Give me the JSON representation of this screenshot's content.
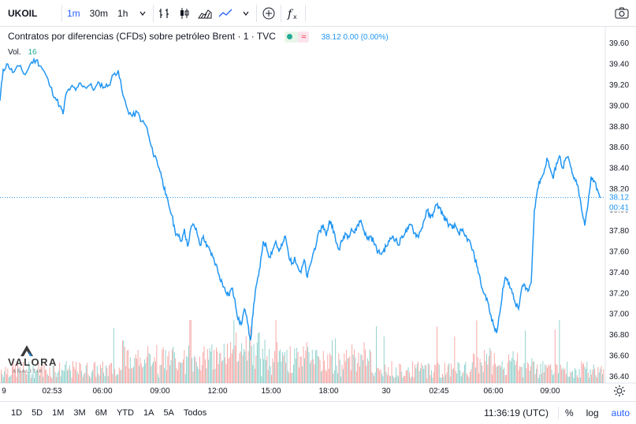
{
  "toolbar": {
    "symbol": "UKOIL",
    "intervals": [
      "1m",
      "30m",
      "1h"
    ],
    "active_interval": "1m"
  },
  "legend": {
    "title": "Contratos por diferencias (CFDs) sobre petróleo Brent · 1 · TVC",
    "badge": "≈",
    "quote": "38.12  0.00 (0.00%)",
    "volume_label": "Vol.",
    "volume_value": "16"
  },
  "price_axis": {
    "ticks": [
      "39.60",
      "39.40",
      "39.20",
      "39.00",
      "38.80",
      "38.60",
      "38.40",
      "38.20",
      "38.00",
      "37.80",
      "37.60",
      "37.40",
      "37.20",
      "37.00",
      "36.80",
      "36.60",
      "36.40"
    ],
    "last_price": "38.12",
    "countdown": "00:41"
  },
  "time_axis": {
    "labels": [
      "9",
      "02:53",
      "06:00",
      "09:00",
      "12:00",
      "15:00",
      "18:00",
      "30",
      "02:45",
      "06:00",
      "09:00"
    ]
  },
  "bottom": {
    "ranges": [
      "1D",
      "5D",
      "1M",
      "3M",
      "6M",
      "YTD",
      "1A",
      "5A",
      "Todos"
    ],
    "clock": "11:36:19 (UTC)",
    "percent": "%",
    "log": "log",
    "auto": "auto"
  },
  "logo": {
    "name": "VALORA",
    "sub": "ANALITIK"
  },
  "colors": {
    "line": "#2196f3",
    "up_vol": "#26a69a",
    "down_vol": "#ef5350",
    "accent": "#2962ff"
  },
  "chart_data": {
    "type": "line",
    "x": [
      "02:53",
      "06:00",
      "09:00",
      "12:00",
      "15:00",
      "18:00",
      "30",
      "02:45",
      "06:00",
      "09:00"
    ],
    "series": [
      {
        "values": [
          39.35,
          39.15,
          38.9,
          37.8,
          37.0,
          37.75,
          37.7,
          37.95,
          36.9,
          38.3
        ]
      }
    ],
    "ylim": [
      36.35,
      39.7
    ],
    "price_points": [
      [
        0,
        39.05
      ],
      [
        4,
        39.35
      ],
      [
        10,
        39.4
      ],
      [
        16,
        39.32
      ],
      [
        24,
        39.38
      ],
      [
        32,
        39.3
      ],
      [
        40,
        39.42
      ],
      [
        46,
        39.44
      ],
      [
        52,
        39.38
      ],
      [
        58,
        39.3
      ],
      [
        64,
        39.18
      ],
      [
        70,
        39.08
      ],
      [
        76,
        39.0
      ],
      [
        80,
        38.92
      ],
      [
        84,
        39.12
      ],
      [
        90,
        39.18
      ],
      [
        96,
        39.15
      ],
      [
        102,
        39.22
      ],
      [
        108,
        39.18
      ],
      [
        114,
        39.2
      ],
      [
        120,
        39.16
      ],
      [
        126,
        39.22
      ],
      [
        132,
        39.18
      ],
      [
        138,
        39.2
      ],
      [
        144,
        39.3
      ],
      [
        150,
        39.34
      ],
      [
        156,
        39.1
      ],
      [
        162,
        38.96
      ],
      [
        168,
        38.9
      ],
      [
        174,
        38.94
      ],
      [
        180,
        38.85
      ],
      [
        186,
        38.8
      ],
      [
        190,
        38.66
      ],
      [
        194,
        38.55
      ],
      [
        198,
        38.5
      ],
      [
        202,
        38.4
      ],
      [
        206,
        38.3
      ],
      [
        210,
        38.15
      ],
      [
        214,
        38.05
      ],
      [
        218,
        37.95
      ],
      [
        222,
        37.8
      ],
      [
        226,
        37.75
      ],
      [
        230,
        37.7
      ],
      [
        234,
        37.82
      ],
      [
        238,
        37.65
      ],
      [
        242,
        37.82
      ],
      [
        246,
        37.86
      ],
      [
        250,
        37.78
      ],
      [
        254,
        37.66
      ],
      [
        258,
        37.75
      ],
      [
        262,
        37.65
      ],
      [
        266,
        37.62
      ],
      [
        270,
        37.55
      ],
      [
        274,
        37.48
      ],
      [
        278,
        37.38
      ],
      [
        282,
        37.3
      ],
      [
        286,
        37.22
      ],
      [
        290,
        37.18
      ],
      [
        294,
        37.25
      ],
      [
        298,
        37.15
      ],
      [
        302,
        36.95
      ],
      [
        306,
        36.9
      ],
      [
        310,
        37.05
      ],
      [
        314,
        36.92
      ],
      [
        318,
        36.75
      ],
      [
        322,
        37.1
      ],
      [
        326,
        37.3
      ],
      [
        330,
        37.45
      ],
      [
        334,
        37.7
      ],
      [
        338,
        37.65
      ],
      [
        342,
        37.55
      ],
      [
        346,
        37.62
      ],
      [
        350,
        37.7
      ],
      [
        354,
        37.6
      ],
      [
        358,
        37.66
      ],
      [
        362,
        37.75
      ],
      [
        366,
        37.58
      ],
      [
        370,
        37.48
      ],
      [
        374,
        37.55
      ],
      [
        378,
        37.45
      ],
      [
        382,
        37.4
      ],
      [
        386,
        37.52
      ],
      [
        390,
        37.35
      ],
      [
        394,
        37.48
      ],
      [
        398,
        37.6
      ],
      [
        402,
        37.7
      ],
      [
        406,
        37.8
      ],
      [
        410,
        37.86
      ],
      [
        414,
        37.75
      ],
      [
        418,
        37.9
      ],
      [
        422,
        37.85
      ],
      [
        426,
        37.7
      ],
      [
        430,
        37.62
      ],
      [
        434,
        37.7
      ],
      [
        438,
        37.78
      ],
      [
        442,
        37.75
      ],
      [
        446,
        37.82
      ],
      [
        450,
        37.78
      ],
      [
        454,
        37.86
      ],
      [
        458,
        37.9
      ],
      [
        462,
        37.8
      ],
      [
        466,
        37.72
      ],
      [
        470,
        37.75
      ],
      [
        474,
        37.7
      ],
      [
        478,
        37.62
      ],
      [
        482,
        37.58
      ],
      [
        486,
        37.6
      ],
      [
        490,
        37.65
      ],
      [
        494,
        37.7
      ],
      [
        498,
        37.75
      ],
      [
        502,
        37.72
      ],
      [
        506,
        37.66
      ],
      [
        510,
        37.75
      ],
      [
        514,
        37.78
      ],
      [
        518,
        37.82
      ],
      [
        522,
        37.86
      ],
      [
        526,
        37.78
      ],
      [
        530,
        37.75
      ],
      [
        534,
        37.8
      ],
      [
        538,
        37.9
      ],
      [
        542,
        38.0
      ],
      [
        546,
        37.92
      ],
      [
        550,
        37.98
      ],
      [
        554,
        38.05
      ],
      [
        558,
        38.02
      ],
      [
        562,
        37.95
      ],
      [
        566,
        37.9
      ],
      [
        570,
        37.86
      ],
      [
        574,
        37.82
      ],
      [
        578,
        37.85
      ],
      [
        582,
        37.78
      ],
      [
        586,
        37.8
      ],
      [
        590,
        37.75
      ],
      [
        594,
        37.72
      ],
      [
        598,
        37.65
      ],
      [
        602,
        37.55
      ],
      [
        606,
        37.45
      ],
      [
        610,
        37.3
      ],
      [
        614,
        37.2
      ],
      [
        618,
        37.15
      ],
      [
        622,
        37.0
      ],
      [
        626,
        36.9
      ],
      [
        630,
        36.82
      ],
      [
        634,
        37.0
      ],
      [
        638,
        37.25
      ],
      [
        642,
        37.35
      ],
      [
        646,
        37.3
      ],
      [
        650,
        37.2
      ],
      [
        654,
        37.1
      ],
      [
        658,
        37.05
      ],
      [
        662,
        37.25
      ],
      [
        666,
        37.28
      ],
      [
        670,
        37.22
      ],
      [
        674,
        37.3
      ],
      [
        678,
        38.0
      ],
      [
        682,
        38.2
      ],
      [
        686,
        38.3
      ],
      [
        690,
        38.35
      ],
      [
        694,
        38.5
      ],
      [
        698,
        38.4
      ],
      [
        702,
        38.3
      ],
      [
        706,
        38.45
      ],
      [
        710,
        38.52
      ],
      [
        714,
        38.4
      ],
      [
        718,
        38.5
      ],
      [
        722,
        38.48
      ],
      [
        726,
        38.35
      ],
      [
        730,
        38.28
      ],
      [
        734,
        38.2
      ],
      [
        738,
        38.0
      ],
      [
        742,
        37.85
      ],
      [
        746,
        38.05
      ],
      [
        750,
        38.32
      ],
      [
        754,
        38.28
      ],
      [
        758,
        38.2
      ],
      [
        762,
        38.12
      ]
    ]
  }
}
